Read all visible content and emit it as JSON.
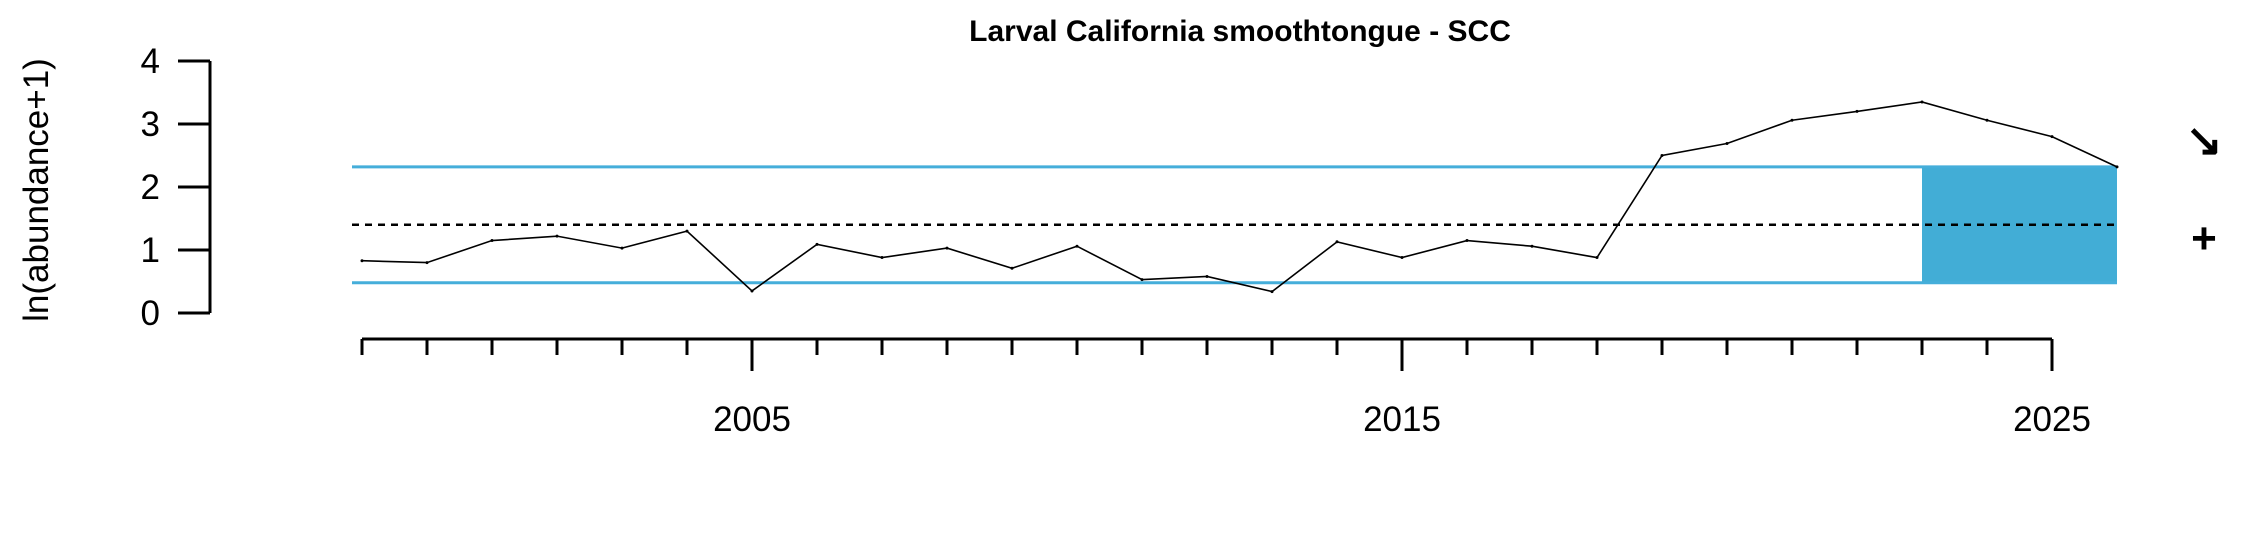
{
  "chart_data": {
    "type": "line",
    "title": "Larval California smoothtongue - SCC",
    "xlabel": "",
    "ylabel": "ln(abundance+1)",
    "xlim": [
      1998,
      2025
    ],
    "ylim": [
      0,
      4
    ],
    "x_major_ticks": [
      2005,
      2015,
      2025
    ],
    "x_minor_ticks": [
      1999,
      2000,
      2001,
      2002,
      2003,
      2004,
      2005,
      2006,
      2007,
      2008,
      2009,
      2010,
      2011,
      2012,
      2013,
      2014,
      2015,
      2016,
      2017,
      2018,
      2019,
      2020,
      2021,
      2022,
      2023,
      2024,
      2025
    ],
    "y_ticks": [
      0,
      1,
      2,
      3,
      4
    ],
    "series": [
      {
        "x": [
          1999,
          2000,
          2001,
          2002,
          2003,
          2004,
          2005,
          2006,
          2007,
          2008,
          2009,
          2010,
          2011,
          2012,
          2013,
          2014,
          2015,
          2016,
          2017,
          2018,
          2019,
          2020,
          2021,
          2022,
          2023,
          2024,
          2025
        ],
        "values": [
          0.83,
          0.8,
          1.15,
          1.22,
          1.03,
          1.3,
          0.35,
          1.09,
          0.88,
          1.03,
          0.71,
          1.06,
          0.53,
          0.58,
          0.34,
          1.13,
          0.88,
          1.15,
          1.06,
          0.88,
          2.5,
          2.69,
          3.06,
          3.2,
          3.35,
          3.06,
          2.8
        ]
      }
    ],
    "extra_points": {
      "x": [
        2026
      ],
      "values": [
        2.32
      ]
    },
    "mean": 1.4,
    "upper_sd": 2.32,
    "lower_sd": 0.48,
    "recent_window": [
      2023,
      2026
    ],
    "colors": {
      "line": "#000000",
      "sd_lines": "#45AEDA",
      "recent_box": "#42ADD6",
      "mean_line": "#000000"
    },
    "trend_symbol": "↘",
    "mean_symbol": "+"
  }
}
